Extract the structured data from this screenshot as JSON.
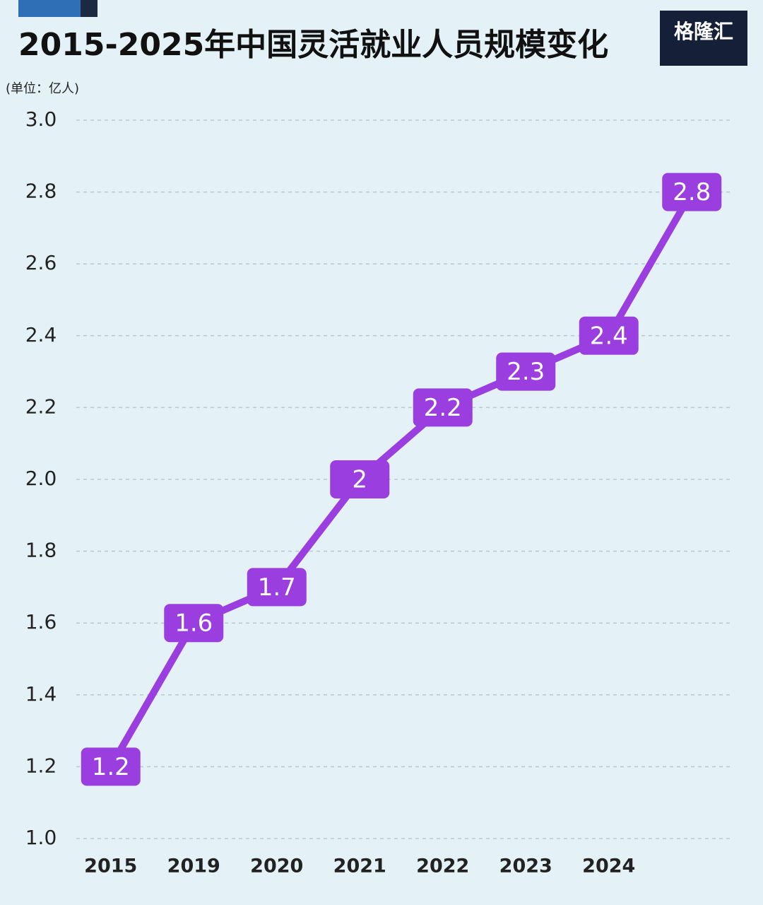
{
  "chart_data": {
    "type": "line",
    "title": "2015-2025年中国灵活就业人员规模变化",
    "unit": "(单位：亿人)",
    "logo": "格隆汇",
    "categories": [
      "2015",
      "2019",
      "2020",
      "2021",
      "2022",
      "2023",
      "2024",
      null
    ],
    "values": [
      1.2,
      1.6,
      1.7,
      2,
      2.2,
      2.3,
      2.4,
      2.8
    ],
    "color": "#9a3ee0",
    "ylim": [
      1.0,
      3.0
    ],
    "yticks": [
      {
        "value": 1.0,
        "label": "1.0"
      },
      1.2,
      1.4,
      1.6,
      1.8,
      {
        "value": 2.0,
        "label": "2.0"
      },
      2.2,
      2.4,
      2.6,
      2.8,
      {
        "value": 3.0,
        "label": "3.0"
      }
    ],
    "grid": true
  }
}
